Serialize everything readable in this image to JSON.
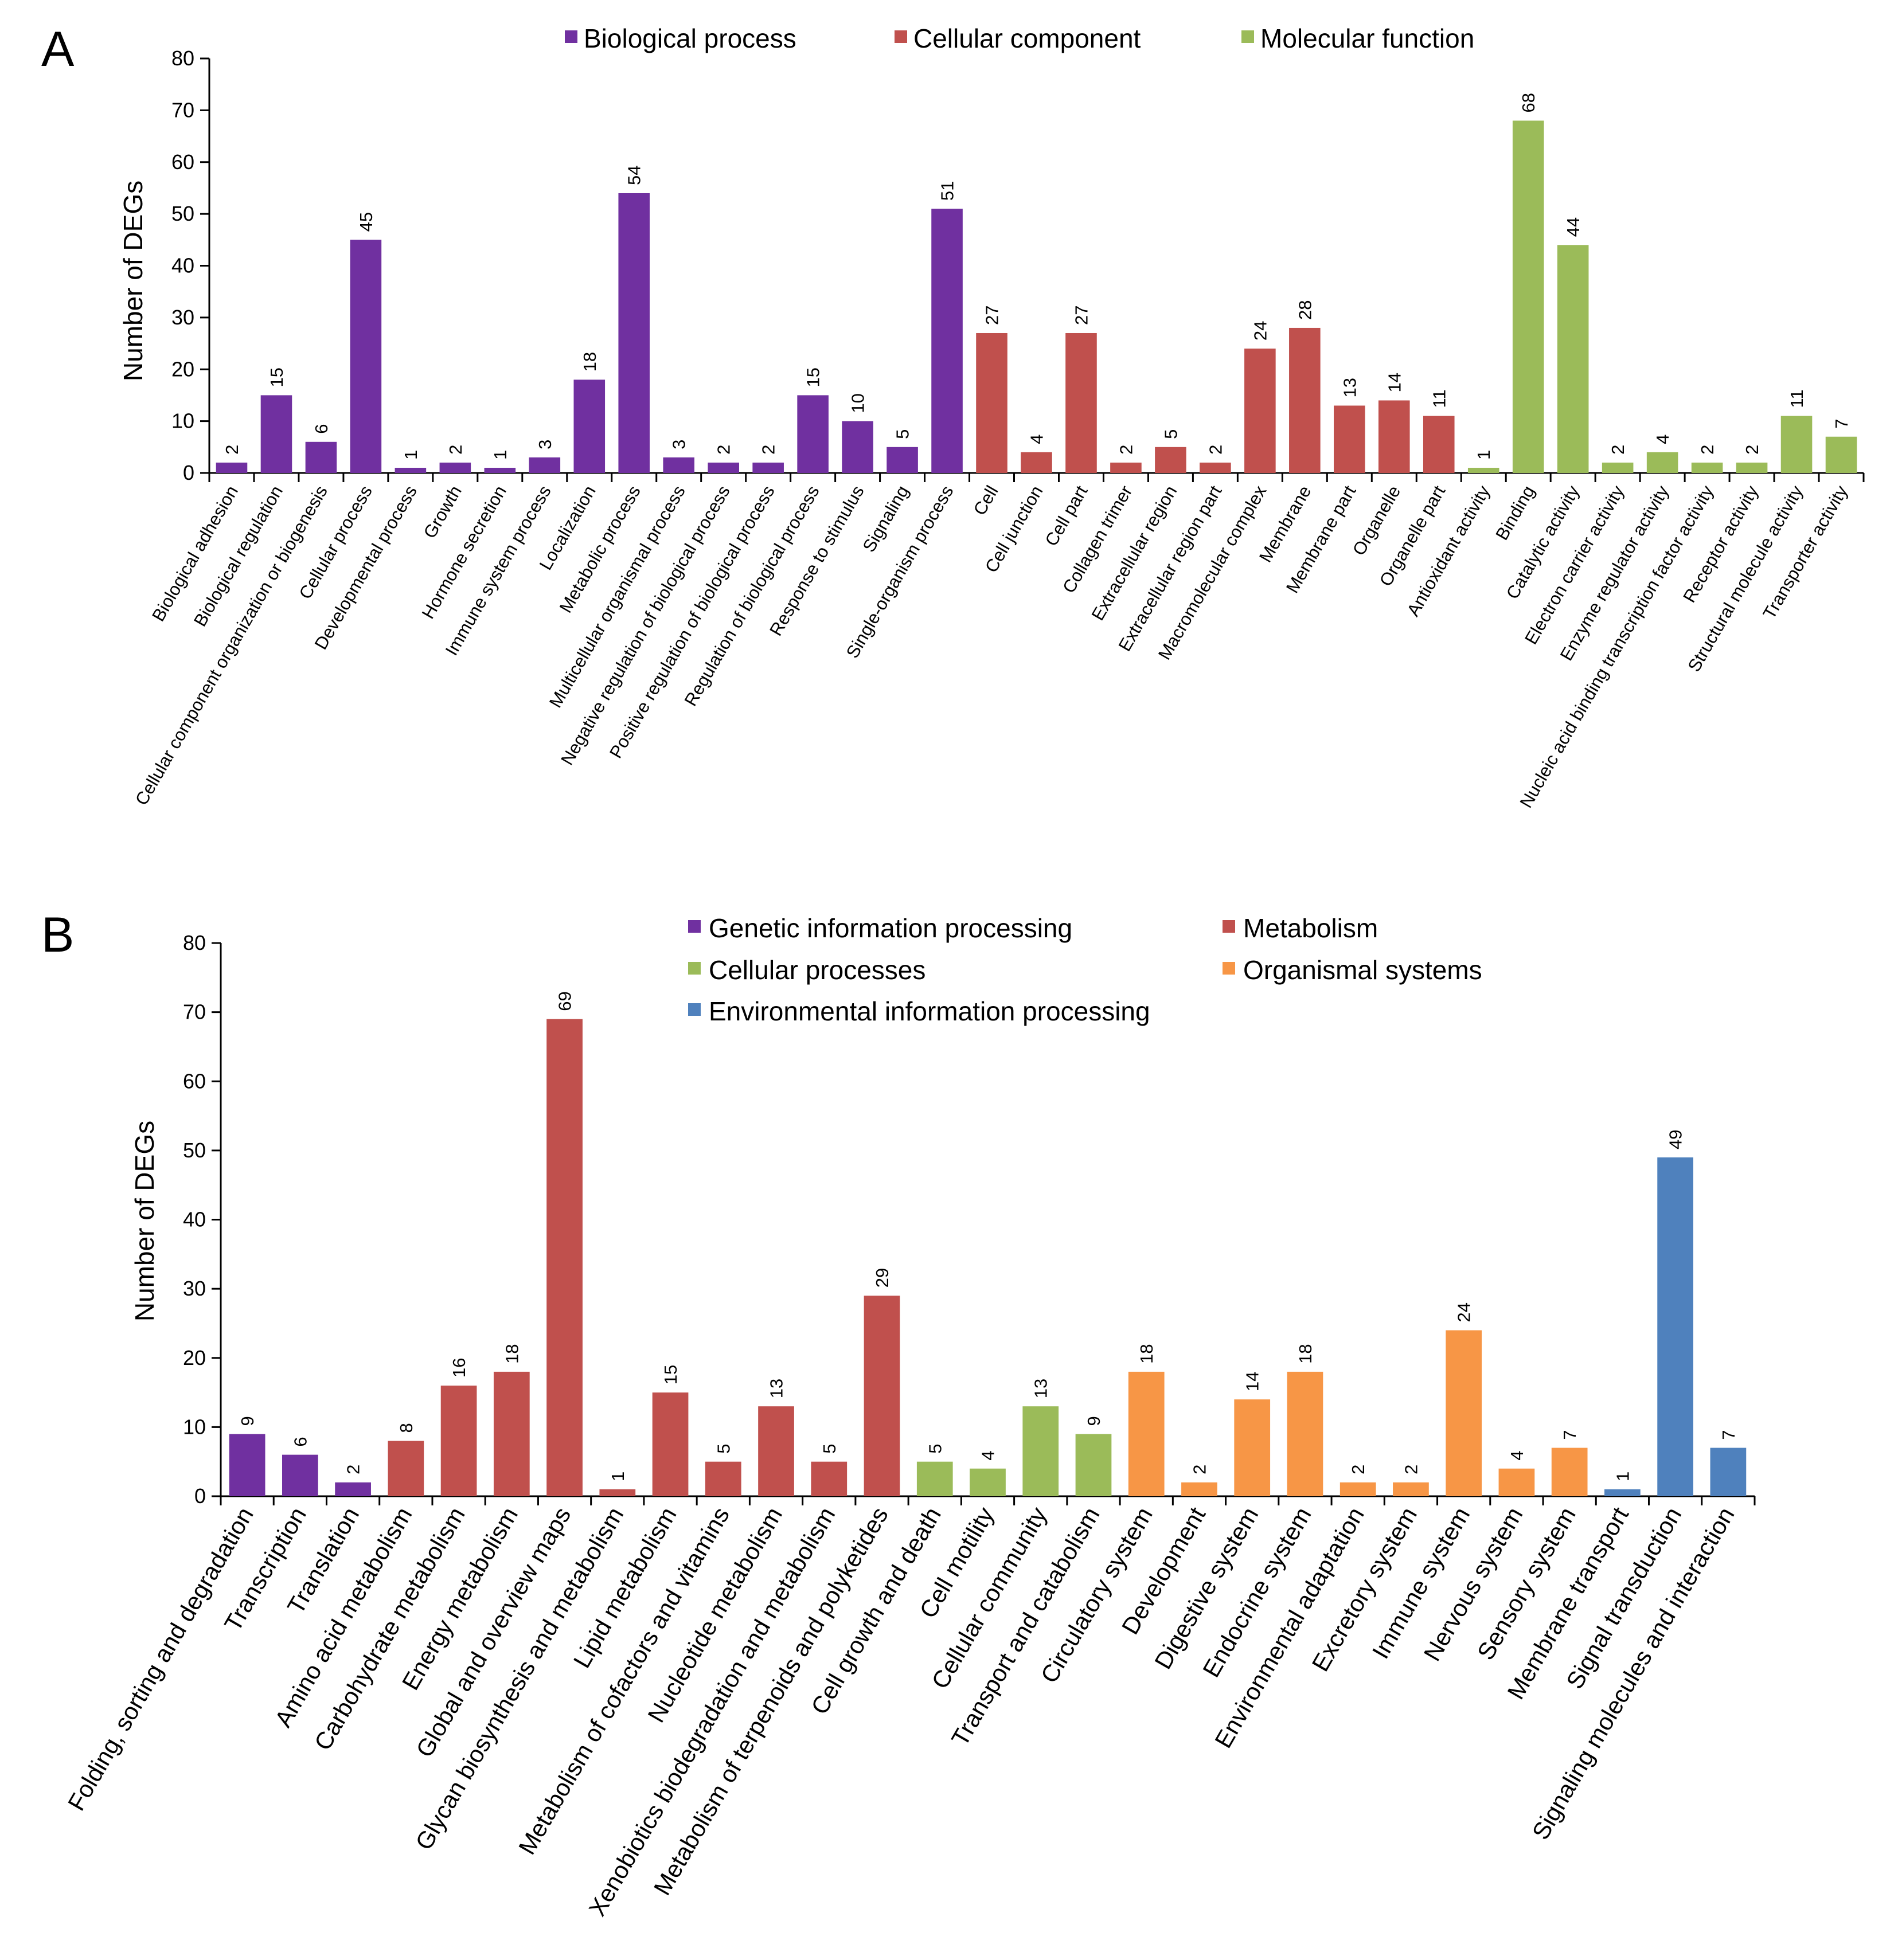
{
  "panels": [
    {
      "letter": "A",
      "ylabel": "Number of DEGs",
      "ylim": [
        0,
        80
      ],
      "yticks": [
        0,
        10,
        20,
        30,
        40,
        50,
        60,
        70,
        80
      ],
      "legend": [
        {
          "name": "Biological process",
          "color": "#7030A0"
        },
        {
          "name": "Cellular component",
          "color": "#C0504D"
        },
        {
          "name": "Molecular function",
          "color": "#9BBB59"
        }
      ]
    },
    {
      "letter": "B",
      "ylabel": "Number of DEGs",
      "ylim": [
        0,
        80
      ],
      "yticks": [
        0,
        10,
        20,
        30,
        40,
        50,
        60,
        70,
        80
      ],
      "legend": [
        {
          "name": "Genetic information processing",
          "color": "#7030A0"
        },
        {
          "name": "Metabolism",
          "color": "#C0504D"
        },
        {
          "name": "Cellular processes",
          "color": "#9BBB59"
        },
        {
          "name": "Organismal systems",
          "color": "#F79646"
        },
        {
          "name": "Environmental information processing",
          "color": "#4F81BD"
        }
      ]
    }
  ],
  "chart_data": [
    {
      "type": "bar",
      "title": "A",
      "xlabel": "",
      "ylabel": "Number of DEGs",
      "ylim": [
        0,
        80
      ],
      "categories": [
        "Biological adhesion",
        "Biological regulation",
        "Cellular component organization or biogenesis",
        "Cellular process",
        "Developmental process",
        "Growth",
        "Hormone secretion",
        "Immune system process",
        "Localization",
        "Metabolic process",
        "Multicellular organismal process",
        "Negative regulation of biological process",
        "Positive regulation of biological process",
        "Regulation of biological process",
        "Response to stimulus",
        "Signaling",
        "Single-organism process",
        "Cell",
        "Cell junction",
        "Cell part",
        "Collagen trimer",
        "Extracellular region",
        "Extracellular region part",
        "Macromolecular complex",
        "Membrane",
        "Membrane part",
        "Organelle",
        "Organelle part",
        "Antioxidant activity",
        "Binding",
        "Catalytic activity",
        "Electron carrier activity",
        "Enzyme regulator activity",
        "Nucleic acid binding transcription factor activity",
        "Receptor activity",
        "Structural molecule activity",
        "Transporter activity"
      ],
      "values": [
        2,
        15,
        6,
        45,
        1,
        2,
        1,
        3,
        18,
        54,
        3,
        2,
        2,
        15,
        10,
        5,
        51,
        27,
        4,
        27,
        2,
        5,
        2,
        24,
        28,
        13,
        14,
        11,
        1,
        68,
        44,
        2,
        4,
        2,
        2,
        11,
        7
      ],
      "groups": [
        0,
        0,
        0,
        0,
        0,
        0,
        0,
        0,
        0,
        0,
        0,
        0,
        0,
        0,
        0,
        0,
        0,
        1,
        1,
        1,
        1,
        1,
        1,
        1,
        1,
        1,
        1,
        1,
        2,
        2,
        2,
        2,
        2,
        2,
        2,
        2,
        2
      ],
      "series": [
        {
          "name": "Biological process",
          "range": [
            0,
            16
          ]
        },
        {
          "name": "Cellular component",
          "range": [
            17,
            27
          ]
        },
        {
          "name": "Molecular function",
          "range": [
            28,
            36
          ]
        }
      ],
      "legend": "top"
    },
    {
      "type": "bar",
      "title": "B",
      "xlabel": "",
      "ylabel": "Number of DEGs",
      "ylim": [
        0,
        80
      ],
      "categories": [
        "Folding, sorting and degradation",
        "Transcription",
        "Translation",
        "Amino acid metabolism",
        "Carbohydrate metabolism",
        "Energy metabolism",
        "Global and overview maps",
        "Glycan biosynthesis and metabolism",
        "Lipid metabolism",
        "Metabolism of cofactors and vitamins",
        "Nucleotide metabolism",
        "Xenobiotics biodegradation and metabolism",
        "Metabolism of terpenoids and polyketides",
        "Cell growth and death",
        "Cell motility",
        "Cellular community",
        "Transport and catabolism",
        "Circulatory system",
        "Development",
        "Digestive system",
        "Endocrine system",
        "Environmental adaptation",
        "Excretory system",
        "Immune system",
        "Nervous system",
        "Sensory system",
        "Membrane transport",
        "Signal transduction",
        "Signaling molecules and interaction"
      ],
      "values": [
        9,
        6,
        2,
        8,
        16,
        18,
        69,
        1,
        15,
        5,
        13,
        5,
        29,
        5,
        4,
        13,
        9,
        18,
        2,
        14,
        18,
        2,
        2,
        24,
        4,
        7,
        1,
        49,
        7
      ],
      "groups": [
        0,
        0,
        0,
        1,
        1,
        1,
        1,
        1,
        1,
        1,
        1,
        1,
        1,
        2,
        2,
        2,
        2,
        3,
        3,
        3,
        3,
        3,
        3,
        3,
        3,
        3,
        4,
        4,
        4
      ],
      "series": [
        {
          "name": "Genetic information processing",
          "range": [
            0,
            2
          ]
        },
        {
          "name": "Metabolism",
          "range": [
            3,
            12
          ]
        },
        {
          "name": "Cellular processes",
          "range": [
            13,
            16
          ]
        },
        {
          "name": "Organismal systems",
          "range": [
            17,
            25
          ]
        },
        {
          "name": "Environmental information processing",
          "range": [
            26,
            28
          ]
        }
      ],
      "legend": "top"
    }
  ]
}
